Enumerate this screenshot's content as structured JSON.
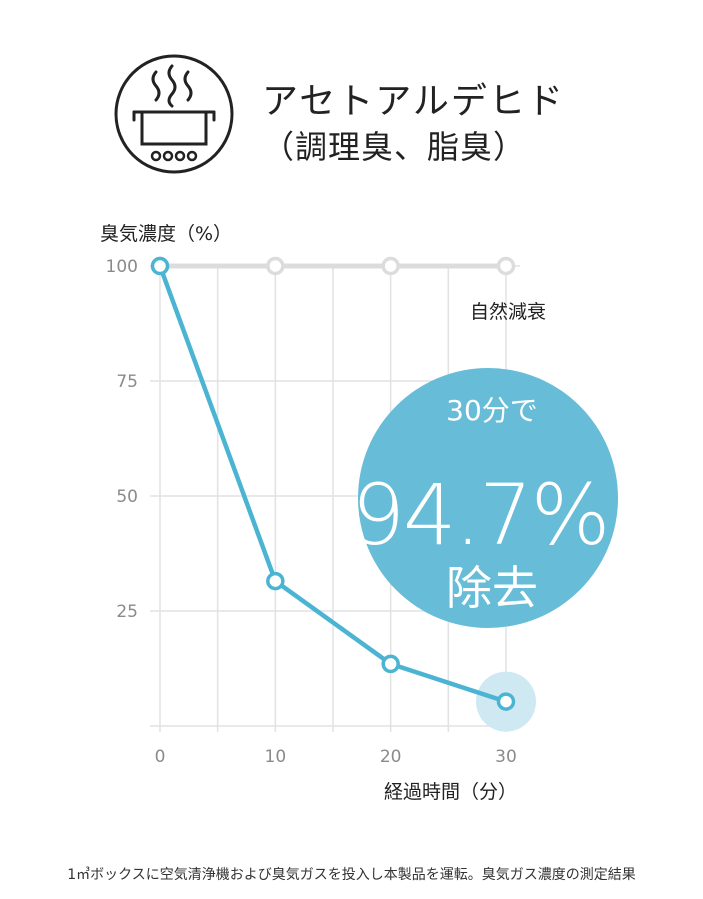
{
  "header": {
    "title": "アセトアルデヒド",
    "subtitle_open": "（",
    "subtitle": "調理臭、脂臭",
    "subtitle_close": "）",
    "icon": "cooking-pot-steam-icon"
  },
  "footnote": "1㎥ボックスに空気清浄機および臭気ガスを投入し本製品を運転。臭気ガス濃度の測定結果",
  "chart_data": {
    "type": "line",
    "ylabel": "臭気濃度（%）",
    "xlabel": "経過時間（分）",
    "x": [
      0,
      10,
      20,
      30
    ],
    "xticks": [
      "0",
      "10",
      "20",
      "30"
    ],
    "yticks": [
      "100",
      "75",
      "50",
      "25"
    ],
    "ylim": [
      0,
      100
    ],
    "xlim": [
      0,
      30
    ],
    "grid": true,
    "series": [
      {
        "name": "",
        "values": [
          100,
          31.5,
          13.5,
          5.3
        ],
        "color": "#4bb4d2"
      },
      {
        "name": "自然減衰",
        "values": [
          100,
          100,
          100,
          100
        ],
        "color": "#dcdcdc"
      }
    ],
    "callout": {
      "line1": "30分で",
      "value": "94.7%",
      "line3": "除去",
      "color": "#67bcd8"
    }
  }
}
